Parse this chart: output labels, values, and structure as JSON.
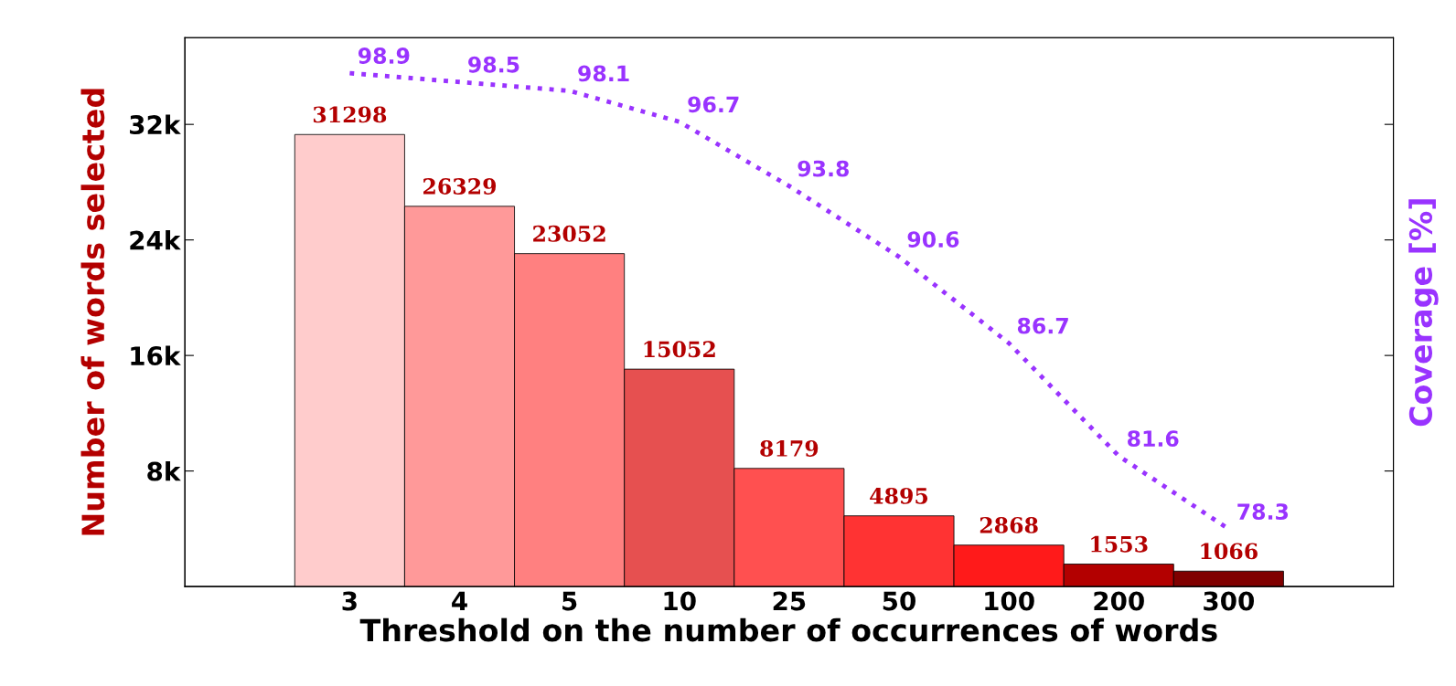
{
  "chart_data": {
    "type": "bar",
    "xlabel": "Threshold on the number of occurrences of words",
    "ylabel": "Number of words selected",
    "y2label": "Coverage [%]",
    "categories": [
      "3",
      "4",
      "5",
      "10",
      "25",
      "50",
      "100",
      "200",
      "300"
    ],
    "series": [
      {
        "colors": [
          "#ffcccc",
          "#ff9999",
          "#ff8080",
          "#e65050",
          "#ff5050",
          "#ff3333",
          "#ff1a1a",
          "#b30000",
          "#800000"
        ],
        "color": "#b30000",
        "values": [
          31298,
          26329,
          23052,
          15052,
          8179,
          4895,
          2868,
          1553,
          1066
        ]
      },
      {
        "type": "line",
        "axis": "y2",
        "color": "#9933ff",
        "line_style": "dotted",
        "values": [
          98.9,
          98.5,
          98.1,
          96.7,
          93.8,
          90.6,
          86.7,
          81.6,
          78.3
        ]
      }
    ],
    "ylim": [
      0,
      38000
    ],
    "yticks": [
      {
        "value": 8000,
        "label": "8k"
      },
      {
        "value": 16000,
        "label": "16k"
      },
      {
        "value": 24000,
        "label": "24k"
      },
      {
        "value": 32000,
        "label": "32k"
      }
    ],
    "y2lim": [
      75.7,
      100.5
    ],
    "tick_labels": "xy",
    "data_labels": true,
    "grid": false,
    "legend": false
  }
}
